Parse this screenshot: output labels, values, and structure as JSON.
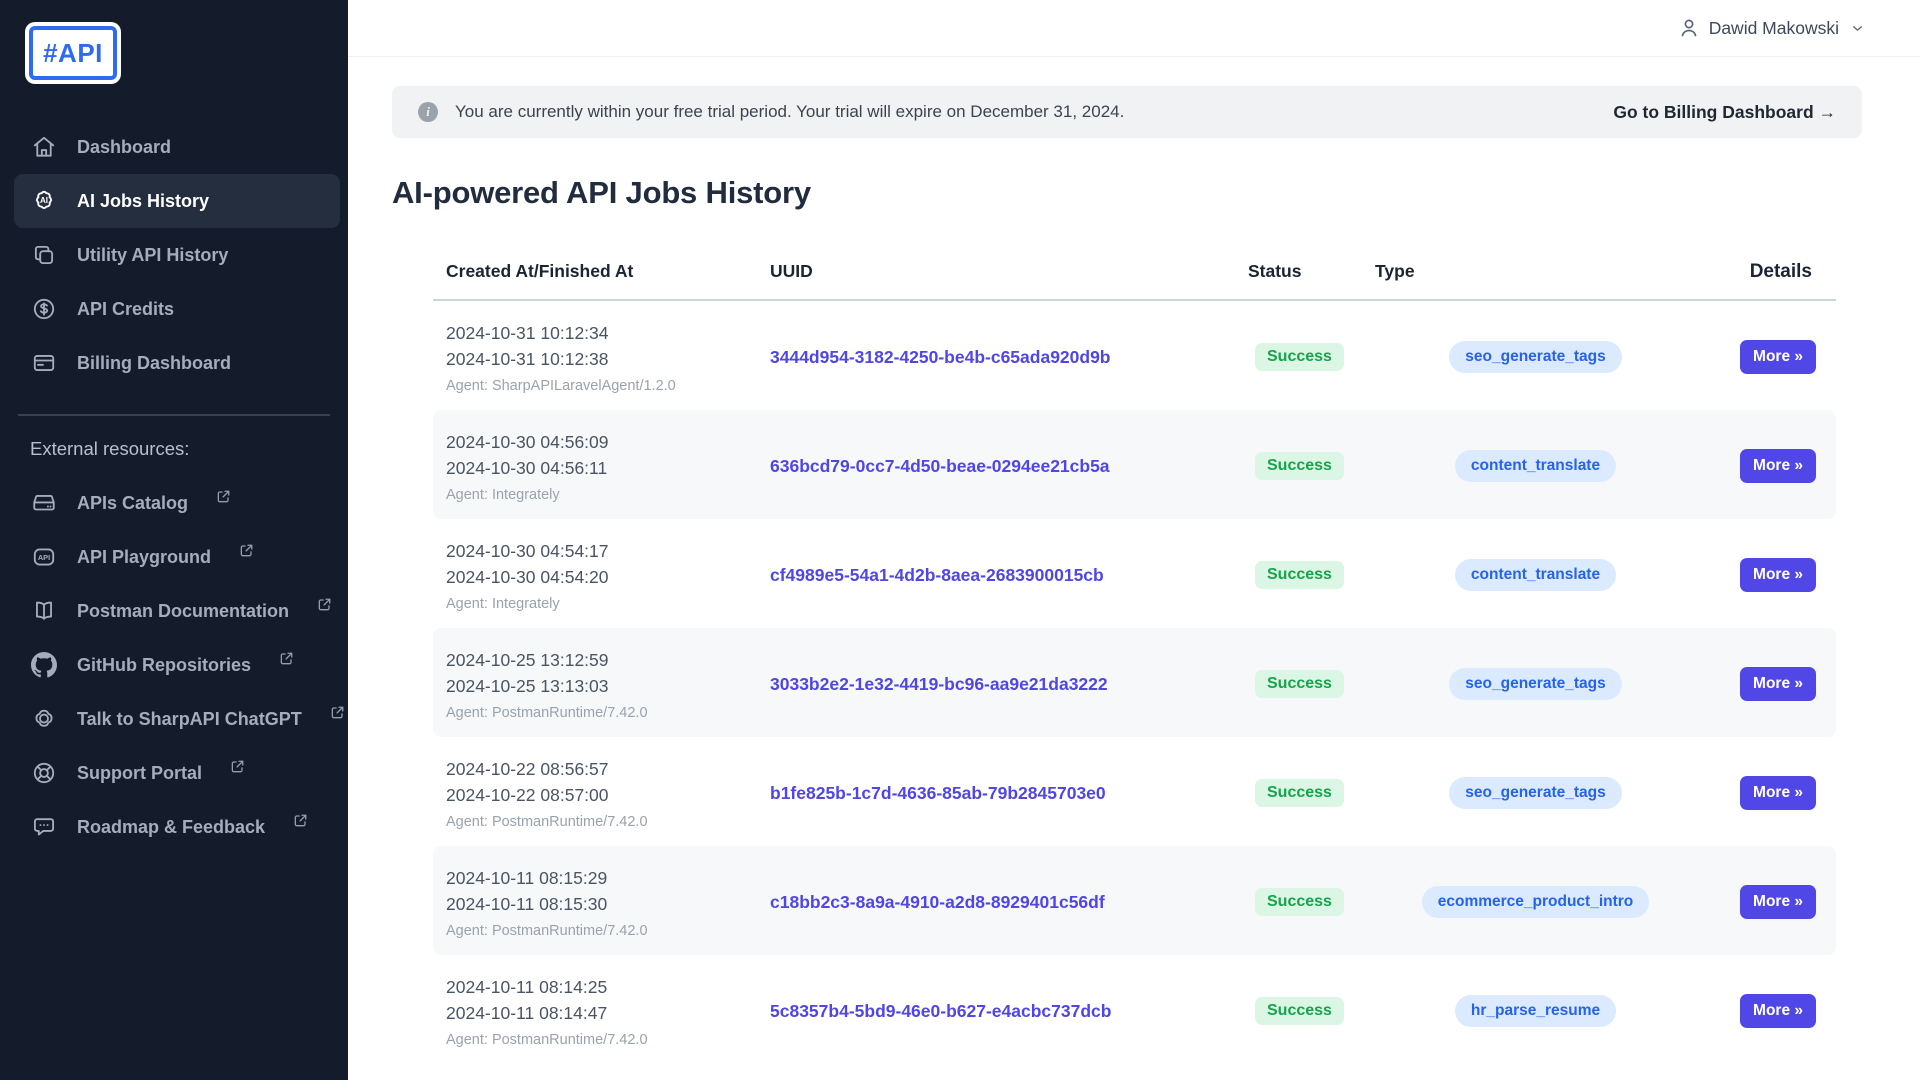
{
  "app": {
    "logo_text": "#API"
  },
  "topbar": {
    "user_name": "Dawid Makowski"
  },
  "banner": {
    "text": "You are currently within your free trial period. Your trial will expire on December 31, 2024.",
    "link_label": "Go to Billing Dashboard →",
    "info_glyph": "i"
  },
  "page": {
    "title": "AI-powered API Jobs History"
  },
  "sidebar": {
    "nav": [
      {
        "id": "dashboard",
        "icon": "home-icon",
        "label": "Dashboard",
        "active": false
      },
      {
        "id": "ai-jobs-history",
        "icon": "ai-brain-icon",
        "label": "AI Jobs History",
        "active": true
      },
      {
        "id": "utility-api-history",
        "icon": "copy-icon",
        "label": "Utility API History",
        "active": false
      },
      {
        "id": "api-credits",
        "icon": "dollar-circle-icon",
        "label": "API Credits",
        "active": false
      },
      {
        "id": "billing-dashboard",
        "icon": "credit-card-icon",
        "label": "Billing Dashboard",
        "active": false
      }
    ],
    "section_label": "External resources:",
    "external": [
      {
        "id": "apis-catalog",
        "icon": "hard-drive-icon",
        "label": "APIs Catalog"
      },
      {
        "id": "api-playground",
        "icon": "api-badge-icon",
        "label": "API Playground"
      },
      {
        "id": "postman-documentation",
        "icon": "book-icon",
        "label": "Postman Documentation"
      },
      {
        "id": "github-repositories",
        "icon": "github-icon",
        "label": "GitHub Repositories"
      },
      {
        "id": "talk-to-sharpapi-chatgpt",
        "icon": "openai-icon",
        "label": "Talk to SharpAPI ChatGPT"
      },
      {
        "id": "support-portal",
        "icon": "lifebuoy-icon",
        "label": "Support Portal"
      },
      {
        "id": "roadmap-feedback",
        "icon": "chat-bubble-icon",
        "label": "Roadmap & Feedback"
      }
    ]
  },
  "table": {
    "columns": [
      "Created At/Finished At",
      "UUID",
      "Status",
      "Type",
      "Details"
    ],
    "more_label": "More »",
    "rows": [
      {
        "created": "2024-10-31 10:12:34",
        "finished": "2024-10-31 10:12:38",
        "agent": "Agent: SharpAPILaravelAgent/1.2.0",
        "uuid": "3444d954-3182-4250-be4b-c65ada920d9b",
        "status": "Success",
        "type": "seo_generate_tags"
      },
      {
        "created": "2024-10-30 04:56:09",
        "finished": "2024-10-30 04:56:11",
        "agent": "Agent: Integrately",
        "uuid": "636bcd79-0cc7-4d50-beae-0294ee21cb5a",
        "status": "Success",
        "type": "content_translate"
      },
      {
        "created": "2024-10-30 04:54:17",
        "finished": "2024-10-30 04:54:20",
        "agent": "Agent: Integrately",
        "uuid": "cf4989e5-54a1-4d2b-8aea-2683900015cb",
        "status": "Success",
        "type": "content_translate"
      },
      {
        "created": "2024-10-25 13:12:59",
        "finished": "2024-10-25 13:13:03",
        "agent": "Agent: PostmanRuntime/7.42.0",
        "uuid": "3033b2e2-1e32-4419-bc96-aa9e21da3222",
        "status": "Success",
        "type": "seo_generate_tags"
      },
      {
        "created": "2024-10-22 08:56:57",
        "finished": "2024-10-22 08:57:00",
        "agent": "Agent: PostmanRuntime/7.42.0",
        "uuid": "b1fe825b-1c7d-4636-85ab-79b2845703e0",
        "status": "Success",
        "type": "seo_generate_tags"
      },
      {
        "created": "2024-10-11 08:15:29",
        "finished": "2024-10-11 08:15:30",
        "agent": "Agent: PostmanRuntime/7.42.0",
        "uuid": "c18bb2c3-8a9a-4910-a2d8-8929401c56df",
        "status": "Success",
        "type": "ecommerce_product_intro"
      },
      {
        "created": "2024-10-11 08:14:25",
        "finished": "2024-10-11 08:14:47",
        "agent": "Agent: PostmanRuntime/7.42.0",
        "uuid": "5c8357b4-5bd9-46e0-b627-e4acbc737dcb",
        "status": "Success",
        "type": "hr_parse_resume"
      }
    ]
  },
  "colors": {
    "accent": "#5147e6",
    "uuid_link": "#4f46e5",
    "success_text": "#16a34a",
    "success_bg": "#dcf6e6",
    "type_text": "#2563eb",
    "type_bg": "#dbeafe",
    "sidebar_bg": "#141c2b",
    "sidebar_active_bg": "#242e3e",
    "logo_blue": "#2e6bf0",
    "banner_bg": "#f0f2f4"
  }
}
